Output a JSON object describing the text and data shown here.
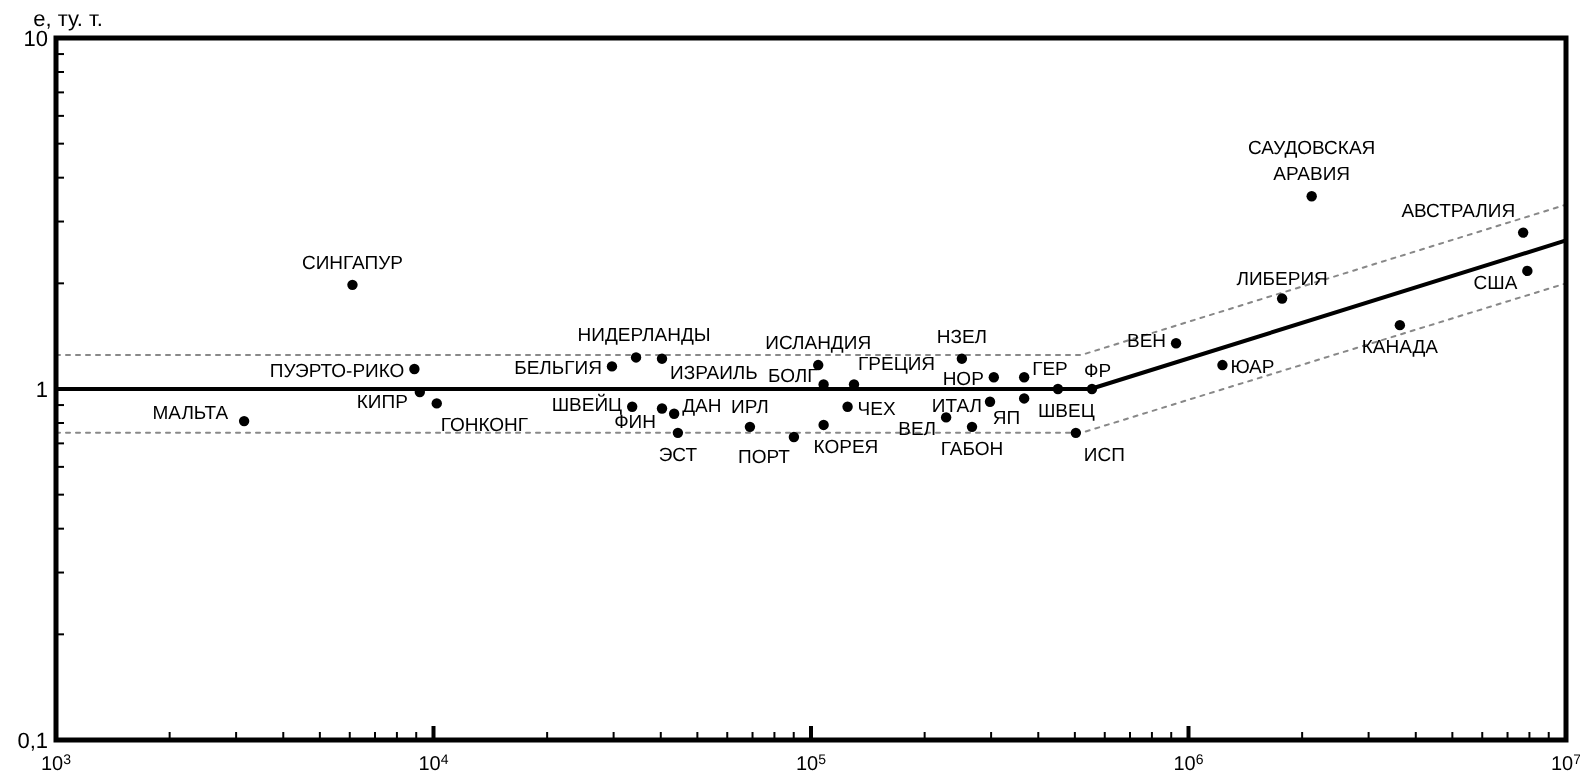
{
  "chart_data": {
    "type": "scatter",
    "ylabel": "e, ту. т.",
    "log": "xy",
    "grid": false,
    "xlim": [
      1000,
      10000000
    ],
    "ylim": [
      0.1,
      10
    ],
    "xticks": [
      {
        "value": 1000,
        "label": "10$^{3}$"
      },
      {
        "value": 2000,
        "label": null
      },
      {
        "value": 3000,
        "label": null
      },
      {
        "value": 4000,
        "label": null
      },
      {
        "value": 5000,
        "label": null
      },
      {
        "value": 6000,
        "label": null
      },
      {
        "value": 7000,
        "label": null
      },
      {
        "value": 8000,
        "label": null
      },
      {
        "value": 9000,
        "label": null
      },
      {
        "value": 10000,
        "label": "10$^{4}$"
      },
      {
        "value": 20000,
        "label": null
      },
      {
        "value": 30000,
        "label": null
      },
      {
        "value": 40000,
        "label": null
      },
      {
        "value": 50000,
        "label": null
      },
      {
        "value": 60000,
        "label": null
      },
      {
        "value": 70000,
        "label": null
      },
      {
        "value": 80000,
        "label": null
      },
      {
        "value": 90000,
        "label": null
      },
      {
        "value": 100000,
        "label": "10$^{5}$"
      },
      {
        "value": 200000,
        "label": null
      },
      {
        "value": 300000,
        "label": null
      },
      {
        "value": 400000,
        "label": null
      },
      {
        "value": 500000,
        "label": null
      },
      {
        "value": 600000,
        "label": null
      },
      {
        "value": 700000,
        "label": null
      },
      {
        "value": 800000,
        "label": null
      },
      {
        "value": 900000,
        "label": null
      },
      {
        "value": 1000000,
        "label": "10$^{6}$"
      },
      {
        "value": 2000000,
        "label": null
      },
      {
        "value": 3000000,
        "label": null
      },
      {
        "value": 4000000,
        "label": null
      },
      {
        "value": 5000000,
        "label": null
      },
      {
        "value": 6000000,
        "label": null
      },
      {
        "value": 7000000,
        "label": null
      },
      {
        "value": 8000000,
        "label": null
      },
      {
        "value": 9000000,
        "label": null
      },
      {
        "value": 10000000,
        "label": "10$^{7}$"
      }
    ],
    "yticks": [
      {
        "value": 0.1,
        "label": "0,1"
      },
      {
        "value": 0.2,
        "label": null
      },
      {
        "value": 0.3,
        "label": null
      },
      {
        "value": 0.4,
        "label": null
      },
      {
        "value": 0.5,
        "label": null
      },
      {
        "value": 0.6,
        "label": null
      },
      {
        "value": 0.7,
        "label": null
      },
      {
        "value": 0.8,
        "label": null
      },
      {
        "value": 0.9,
        "label": null
      },
      {
        "value": 1,
        "label": "1"
      },
      {
        "value": 2,
        "label": null
      },
      {
        "value": 3,
        "label": null
      },
      {
        "value": 4,
        "label": null
      },
      {
        "value": 5,
        "label": null
      },
      {
        "value": 6,
        "label": null
      },
      {
        "value": 7,
        "label": null
      },
      {
        "value": 8,
        "label": null
      },
      {
        "value": 9,
        "label": null
      },
      {
        "value": 10,
        "label": "10"
      }
    ],
    "series": [
      {
        "marker": "circle",
        "color": "#000000",
        "x": [
          6100,
          8900,
          3150,
          9200,
          10200,
          29700,
          34400,
          40300,
          33600,
          40300,
          43400,
          44400,
          68900,
          90100,
          104500,
          108000,
          130000,
          125000,
          108000,
          251000,
          305000,
          367000,
          298000,
          228000,
          267000,
          367000,
          451000,
          555000,
          503000,
          927000,
          1230000,
          1770000,
          2120000,
          3630000,
          7700000,
          7900000
        ],
        "values": [
          1.98,
          1.14,
          0.81,
          0.98,
          0.91,
          1.16,
          1.23,
          1.22,
          0.89,
          0.88,
          0.85,
          0.75,
          0.78,
          0.73,
          1.17,
          1.03,
          1.03,
          0.89,
          0.79,
          1.22,
          1.08,
          1.08,
          0.92,
          0.83,
          0.78,
          0.94,
          1.0,
          1.0,
          0.75,
          1.35,
          1.17,
          1.81,
          3.54,
          1.52,
          2.79,
          2.17
        ]
      },
      {
        "type": "line",
        "marker": "none",
        "color": "#000000",
        "line_style": "solid",
        "x": [
          1000,
          550000,
          10000000
        ],
        "values": [
          1,
          1,
          2.65
        ]
      },
      {
        "type": "line",
        "marker": "none",
        "color": "#888888",
        "line_style": "dotted",
        "x": [
          1000,
          520000,
          10000000
        ],
        "values": [
          1.25,
          1.25,
          3.35
        ]
      },
      {
        "type": "line",
        "marker": "none",
        "color": "#888888",
        "line_style": "dotted",
        "x": [
          1000,
          520000,
          10000000
        ],
        "values": [
          0.75,
          0.75,
          2.0
        ]
      }
    ],
    "annotations": [
      {
        "text": "СИНГАПУР",
        "x": 6100,
        "y": 1.98
      },
      {
        "text": "ПУЭРТО-РИКО",
        "x": 8900,
        "y": 1.14
      },
      {
        "text": "МАЛЬТА",
        "x": 3150,
        "y": 0.81
      },
      {
        "text": "КИПР",
        "x": 9200,
        "y": 0.98
      },
      {
        "text": "ГОНКОНГ",
        "x": 10200,
        "y": 0.91
      },
      {
        "text": "БЕЛЬГИЯ",
        "x": 29700,
        "y": 1.16
      },
      {
        "text": "НИДЕРЛАНДЫ",
        "x": 34400,
        "y": 1.23
      },
      {
        "text": "ИЗРАИЛЬ",
        "x": 40300,
        "y": 1.22
      },
      {
        "text": "ШВЕЙЦ",
        "x": 33600,
        "y": 0.89
      },
      {
        "text": "ФИН",
        "x": 40300,
        "y": 0.88
      },
      {
        "text": "ДАН",
        "x": 43400,
        "y": 0.85
      },
      {
        "text": "ЭСТ",
        "x": 44400,
        "y": 0.75
      },
      {
        "text": "ИРЛ",
        "x": 68900,
        "y": 0.78
      },
      {
        "text": "ПОРТ",
        "x": 90100,
        "y": 0.73
      },
      {
        "text": "ИСЛАНДИЯ",
        "x": 104500,
        "y": 1.17
      },
      {
        "text": "БОЛГ",
        "x": 108000,
        "y": 1.03
      },
      {
        "text": "ГРЕЦИЯ",
        "x": 130000,
        "y": 1.03
      },
      {
        "text": "ЧЕХ",
        "x": 125000,
        "y": 0.89
      },
      {
        "text": "КОРЕЯ",
        "x": 108000,
        "y": 0.79
      },
      {
        "text": "НЗЕЛ",
        "x": 251000,
        "y": 1.22
      },
      {
        "text": "НОР",
        "x": 305000,
        "y": 1.08
      },
      {
        "text": "ГЕР",
        "x": 367000,
        "y": 1.08
      },
      {
        "text": "ИТАЛ",
        "x": 298000,
        "y": 0.92
      },
      {
        "text": "ВЕЛ",
        "x": 228000,
        "y": 0.83
      },
      {
        "text": "ГАБОН",
        "x": 267000,
        "y": 0.78
      },
      {
        "text": "ЯП",
        "x": 367000,
        "y": 0.94
      },
      {
        "text": "ШВЕЦ",
        "x": 451000,
        "y": 1.0
      },
      {
        "text": "ФР",
        "x": 555000,
        "y": 1.0
      },
      {
        "text": "ИСП",
        "x": 503000,
        "y": 0.75
      },
      {
        "text": "ВЕН",
        "x": 927000,
        "y": 1.35
      },
      {
        "text": "ЮАР",
        "x": 1230000,
        "y": 1.17
      },
      {
        "text": "ЛИБЕРИЯ",
        "x": 1770000,
        "y": 1.81
      },
      {
        "text": "САУДОВСКАЯ АРАВИЯ",
        "x": 2120000,
        "y": 3.54
      },
      {
        "text": "КАНАДА",
        "x": 3630000,
        "y": 1.52
      },
      {
        "text": "АВСТРАЛИЯ",
        "x": 7700000,
        "y": 2.79
      },
      {
        "text": "США",
        "x": 7900000,
        "y": 2.17
      }
    ]
  }
}
